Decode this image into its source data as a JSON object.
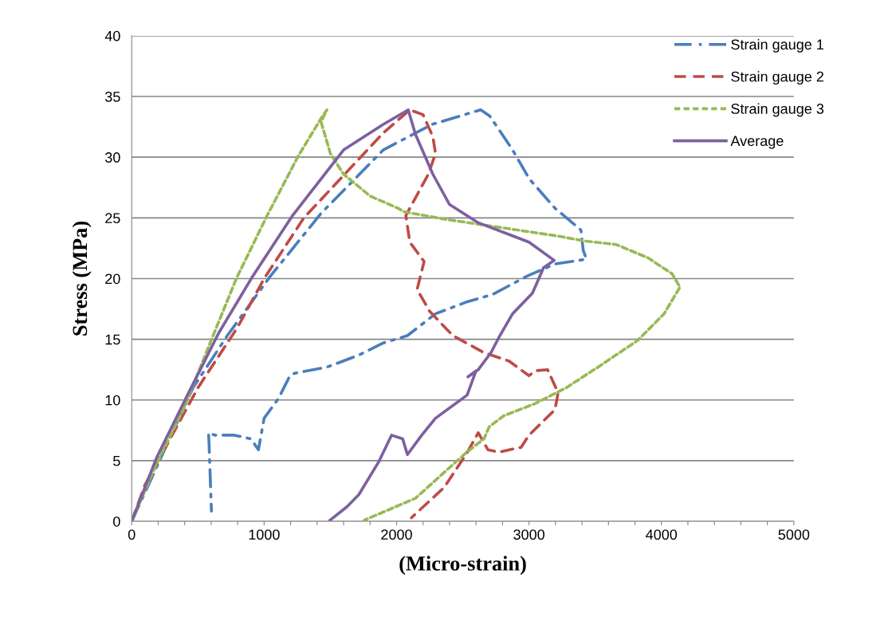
{
  "chart_data": {
    "type": "line",
    "xlabel": "(Micro-strain)",
    "ylabel": "Stress (MPa)",
    "xlim": [
      0,
      5000
    ],
    "ylim": [
      0,
      40
    ],
    "xticks": [
      0,
      {
        "value": 200,
        "label": null
      },
      {
        "value": 400,
        "label": null
      },
      {
        "value": 600,
        "label": null
      },
      {
        "value": 800,
        "label": null
      },
      1000,
      {
        "value": 1200,
        "label": null
      },
      {
        "value": 1400,
        "label": null
      },
      {
        "value": 1600,
        "label": null
      },
      {
        "value": 1800,
        "label": null
      },
      2000,
      {
        "value": 2200,
        "label": null
      },
      {
        "value": 2400,
        "label": null
      },
      {
        "value": 2600,
        "label": null
      },
      {
        "value": 2800,
        "label": null
      },
      3000,
      {
        "value": 3200,
        "label": null
      },
      {
        "value": 3400,
        "label": null
      },
      {
        "value": 3600,
        "label": null
      },
      {
        "value": 3800,
        "label": null
      },
      4000,
      {
        "value": 4200,
        "label": null
      },
      {
        "value": 4400,
        "label": null
      },
      {
        "value": 4600,
        "label": null
      },
      {
        "value": 4800,
        "label": null
      },
      5000
    ],
    "yticks": [
      0,
      5,
      10,
      15,
      20,
      25,
      30,
      35,
      40
    ],
    "grid": "y",
    "legend": "top right",
    "marker": "none",
    "series": [
      {
        "name": "Strain gauge 1",
        "color": "#4a7ebb",
        "line_style": "dashdot",
        "x": [
          0,
          463,
          722,
          1047,
          1432,
          1900,
          2268,
          2635,
          2703,
          2876,
          3003,
          3196,
          3392,
          3410,
          3434,
          3196,
          2985,
          2727,
          2535,
          2294,
          2082,
          1900,
          1715,
          1474,
          1230,
          1195,
          1107,
          1000,
          957,
          900,
          776,
          626,
          580,
          584,
          595,
          602
        ],
        "values": [
          0,
          11.0,
          15.3,
          20.2,
          25.4,
          30.6,
          32.7,
          33.9,
          33.4,
          30.6,
          28.2,
          25.8,
          24.0,
          22.3,
          21.6,
          21.2,
          20.2,
          18.7,
          18.1,
          17.1,
          15.3,
          14.7,
          13.7,
          12.7,
          12.2,
          12.0,
          10.1,
          8.5,
          5.9,
          6.8,
          7.1,
          7.1,
          7.3,
          6.4,
          3.0,
          0.85
        ]
      },
      {
        "name": "Strain gauge 2",
        "color": "#be4b48",
        "line_style": "dashed",
        "x": [
          0,
          100,
          300,
          500,
          800,
          1000,
          1300,
          1600,
          1900,
          2100,
          2200,
          2274,
          2294,
          2240,
          2125,
          2070,
          2100,
          2208,
          2155,
          2250,
          2425,
          2660,
          2850,
          3000,
          3045,
          3140,
          3220,
          3196,
          3000,
          2940,
          2770,
          2690,
          2617,
          2535,
          2360,
          2112
        ],
        "values": [
          0,
          3.0,
          7.0,
          11.0,
          16.0,
          20.0,
          25.0,
          28.5,
          32.0,
          33.9,
          33.5,
          31.7,
          30.3,
          28.6,
          26.3,
          25.2,
          23.0,
          21.4,
          19.1,
          17.3,
          15.3,
          13.9,
          13.2,
          12.0,
          12.4,
          12.5,
          10.6,
          9.2,
          7.1,
          6.1,
          5.7,
          5.9,
          7.3,
          5.7,
          2.8,
          0.3
        ]
      },
      {
        "name": "Strain gauge 3",
        "color": "#98b954",
        "line_style": "dotted",
        "x": [
          0,
          186,
          398,
          596,
          790,
          1023,
          1258,
          1430,
          1474,
          1430,
          1500,
          1600,
          1800,
          2010,
          2058,
          2360,
          2790,
          3220,
          3420,
          3660,
          3900,
          4080,
          4140,
          4020,
          3820,
          3520,
          3280,
          3045,
          2810,
          2700,
          2660,
          2530,
          2142,
          1757
        ],
        "values": [
          0,
          4.7,
          9.4,
          14.8,
          20.0,
          25.2,
          30.1,
          33.2,
          33.9,
          32.9,
          30.3,
          28.6,
          26.8,
          25.8,
          25.5,
          24.9,
          24.2,
          23.5,
          23.1,
          22.8,
          21.7,
          20.4,
          19.3,
          17.1,
          14.9,
          12.7,
          11.0,
          9.7,
          8.7,
          7.8,
          6.8,
          5.7,
          1.9,
          0.1
        ]
      },
      {
        "name": "Average",
        "color": "#7d60a0",
        "line_style": "solid",
        "x": [
          0,
          186,
          421,
          656,
          914,
          1215,
          1600,
          1900,
          2088,
          2142,
          2274,
          2400,
          2617,
          3000,
          3190,
          3110,
          3026,
          2876,
          2780,
          2713,
          2617,
          2539,
          2600,
          2533,
          2294,
          2190,
          2082,
          2046,
          1962,
          1865,
          1715,
          1625,
          1498
        ],
        "values": [
          0,
          5.2,
          10.4,
          15.5,
          20.2,
          25.2,
          30.6,
          32.7,
          33.9,
          31.9,
          28.6,
          26.1,
          24.6,
          23.0,
          21.5,
          20.9,
          18.8,
          17.1,
          15.3,
          13.9,
          12.5,
          11.9,
          12.4,
          10.4,
          8.5,
          7.1,
          5.5,
          6.8,
          7.1,
          4.9,
          2.2,
          1.2,
          0.1
        ]
      }
    ]
  }
}
